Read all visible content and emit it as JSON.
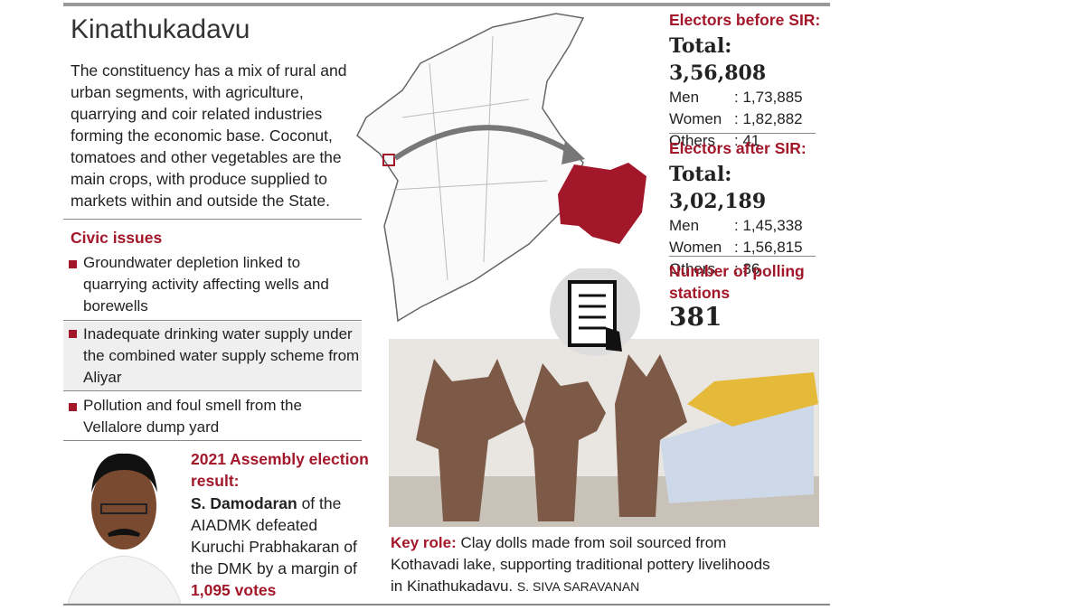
{
  "header": {
    "title": "Kinathukadavu",
    "description": "The  constituency has a mix of rural and urban segments, with agriculture, quarrying and coir related industries forming the economic base. Coconut, tomatoes and other vegetables are the main crops, with produce supplied to markets within and outside the State."
  },
  "civic_issues": {
    "heading": "Civic issues",
    "items": [
      "Groundwater depletion linked to quarrying activity affecting wells and borewells",
      "Inadequate drinking water supply under the combined water supply scheme from Aliyar",
      "Pollution and foul smell from the Vellalore dump yard"
    ]
  },
  "election_result": {
    "heading": "2021 Assembly election result:",
    "winner": "S. Damodaran",
    "text": "of the AIADMK defeated Kuruchi Prabhakaran of the DMK by a margin of",
    "margin": "1,095 votes"
  },
  "electors_before": {
    "heading": "Electors before SIR:",
    "total": "Total: 3,56,808",
    "rows": [
      {
        "label": "Men",
        "value": ": 1,73,885"
      },
      {
        "label": "Women",
        "value": ": 1,82,882"
      },
      {
        "label": "Others",
        "value": ": 41"
      }
    ]
  },
  "electors_after": {
    "heading": "Electors after SIR:",
    "total": "Total: 3,02,189",
    "rows": [
      {
        "label": "Men",
        "value": ": 1,45,338"
      },
      {
        "label": "Women",
        "value": ": 1,56,815"
      },
      {
        "label": "Others",
        "value": ": 36"
      }
    ]
  },
  "polling_stations": {
    "heading": "Number of polling stations",
    "value": "381"
  },
  "caption": {
    "lead": "Key role:",
    "text": "Clay dolls made from soil sourced from Kothavadi lake, supporting traditional pottery livelihoods in Kinathukadavu.",
    "credit": "S. SIVA SARAVANAN"
  }
}
